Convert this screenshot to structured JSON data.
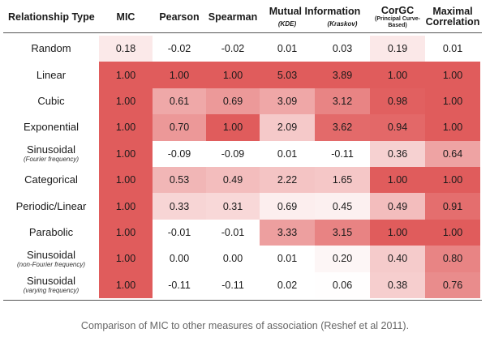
{
  "chart_data": {
    "type": "heatmap",
    "title": "",
    "caption": "Comparison of MIC to other measures of association (Reshef et al 2011).",
    "row_header": "Relationship Type",
    "columns": [
      {
        "key": "mic",
        "label": "MIC",
        "sub": ""
      },
      {
        "key": "pearson",
        "label": "Pearson",
        "sub": ""
      },
      {
        "key": "spearman",
        "label": "Spearman",
        "sub": ""
      },
      {
        "key": "mi_kde",
        "label": "",
        "sub": "(KDE)"
      },
      {
        "key": "mi_kraskov",
        "label": "",
        "sub": "(Kraskov)"
      },
      {
        "key": "corgc",
        "label": "CorGC",
        "sub": "(Principal Curve-Based)"
      },
      {
        "key": "maxcorr",
        "label": "Maximal Correlation",
        "sub": ""
      }
    ],
    "mi_group_label": "Mutual Information",
    "rows": [
      {
        "label": "Random",
        "sub": "",
        "values": [
          "0.18",
          "-0.02",
          "-0.02",
          "0.01",
          "0.03",
          "0.19",
          "0.01"
        ]
      },
      {
        "label": "Linear",
        "sub": "",
        "values": [
          "1.00",
          "1.00",
          "1.00",
          "5.03",
          "3.89",
          "1.00",
          "1.00"
        ]
      },
      {
        "label": "Cubic",
        "sub": "",
        "values": [
          "1.00",
          "0.61",
          "0.69",
          "3.09",
          "3.12",
          "0.98",
          "1.00"
        ]
      },
      {
        "label": "Exponential",
        "sub": "",
        "values": [
          "1.00",
          "0.70",
          "1.00",
          "2.09",
          "3.62",
          "0.94",
          "1.00"
        ]
      },
      {
        "label": "Sinusoidal",
        "sub": "(Fourier frequency)",
        "values": [
          "1.00",
          "-0.09",
          "-0.09",
          "0.01",
          "-0.11",
          "0.36",
          "0.64"
        ]
      },
      {
        "label": "Categorical",
        "sub": "",
        "values": [
          "1.00",
          "0.53",
          "0.49",
          "2.22",
          "1.65",
          "1.00",
          "1.00"
        ]
      },
      {
        "label": "Periodic/Linear",
        "sub": "",
        "values": [
          "1.00",
          "0.33",
          "0.31",
          "0.69",
          "0.45",
          "0.49",
          "0.91"
        ]
      },
      {
        "label": "Parabolic",
        "sub": "",
        "values": [
          "1.00",
          "-0.01",
          "-0.01",
          "3.33",
          "3.15",
          "1.00",
          "1.00"
        ]
      },
      {
        "label": "Sinusoidal",
        "sub": "(non-Fourier frequency)",
        "values": [
          "1.00",
          "0.00",
          "0.00",
          "0.01",
          "0.20",
          "0.40",
          "0.80"
        ]
      },
      {
        "label": "Sinusoidal",
        "sub": "(varying frequency)",
        "values": [
          "1.00",
          "-0.11",
          "-0.11",
          "0.02",
          "0.06",
          "0.38",
          "0.76"
        ]
      }
    ],
    "colors": {
      "low": "#ffffff",
      "high": "#e05a5a"
    }
  }
}
